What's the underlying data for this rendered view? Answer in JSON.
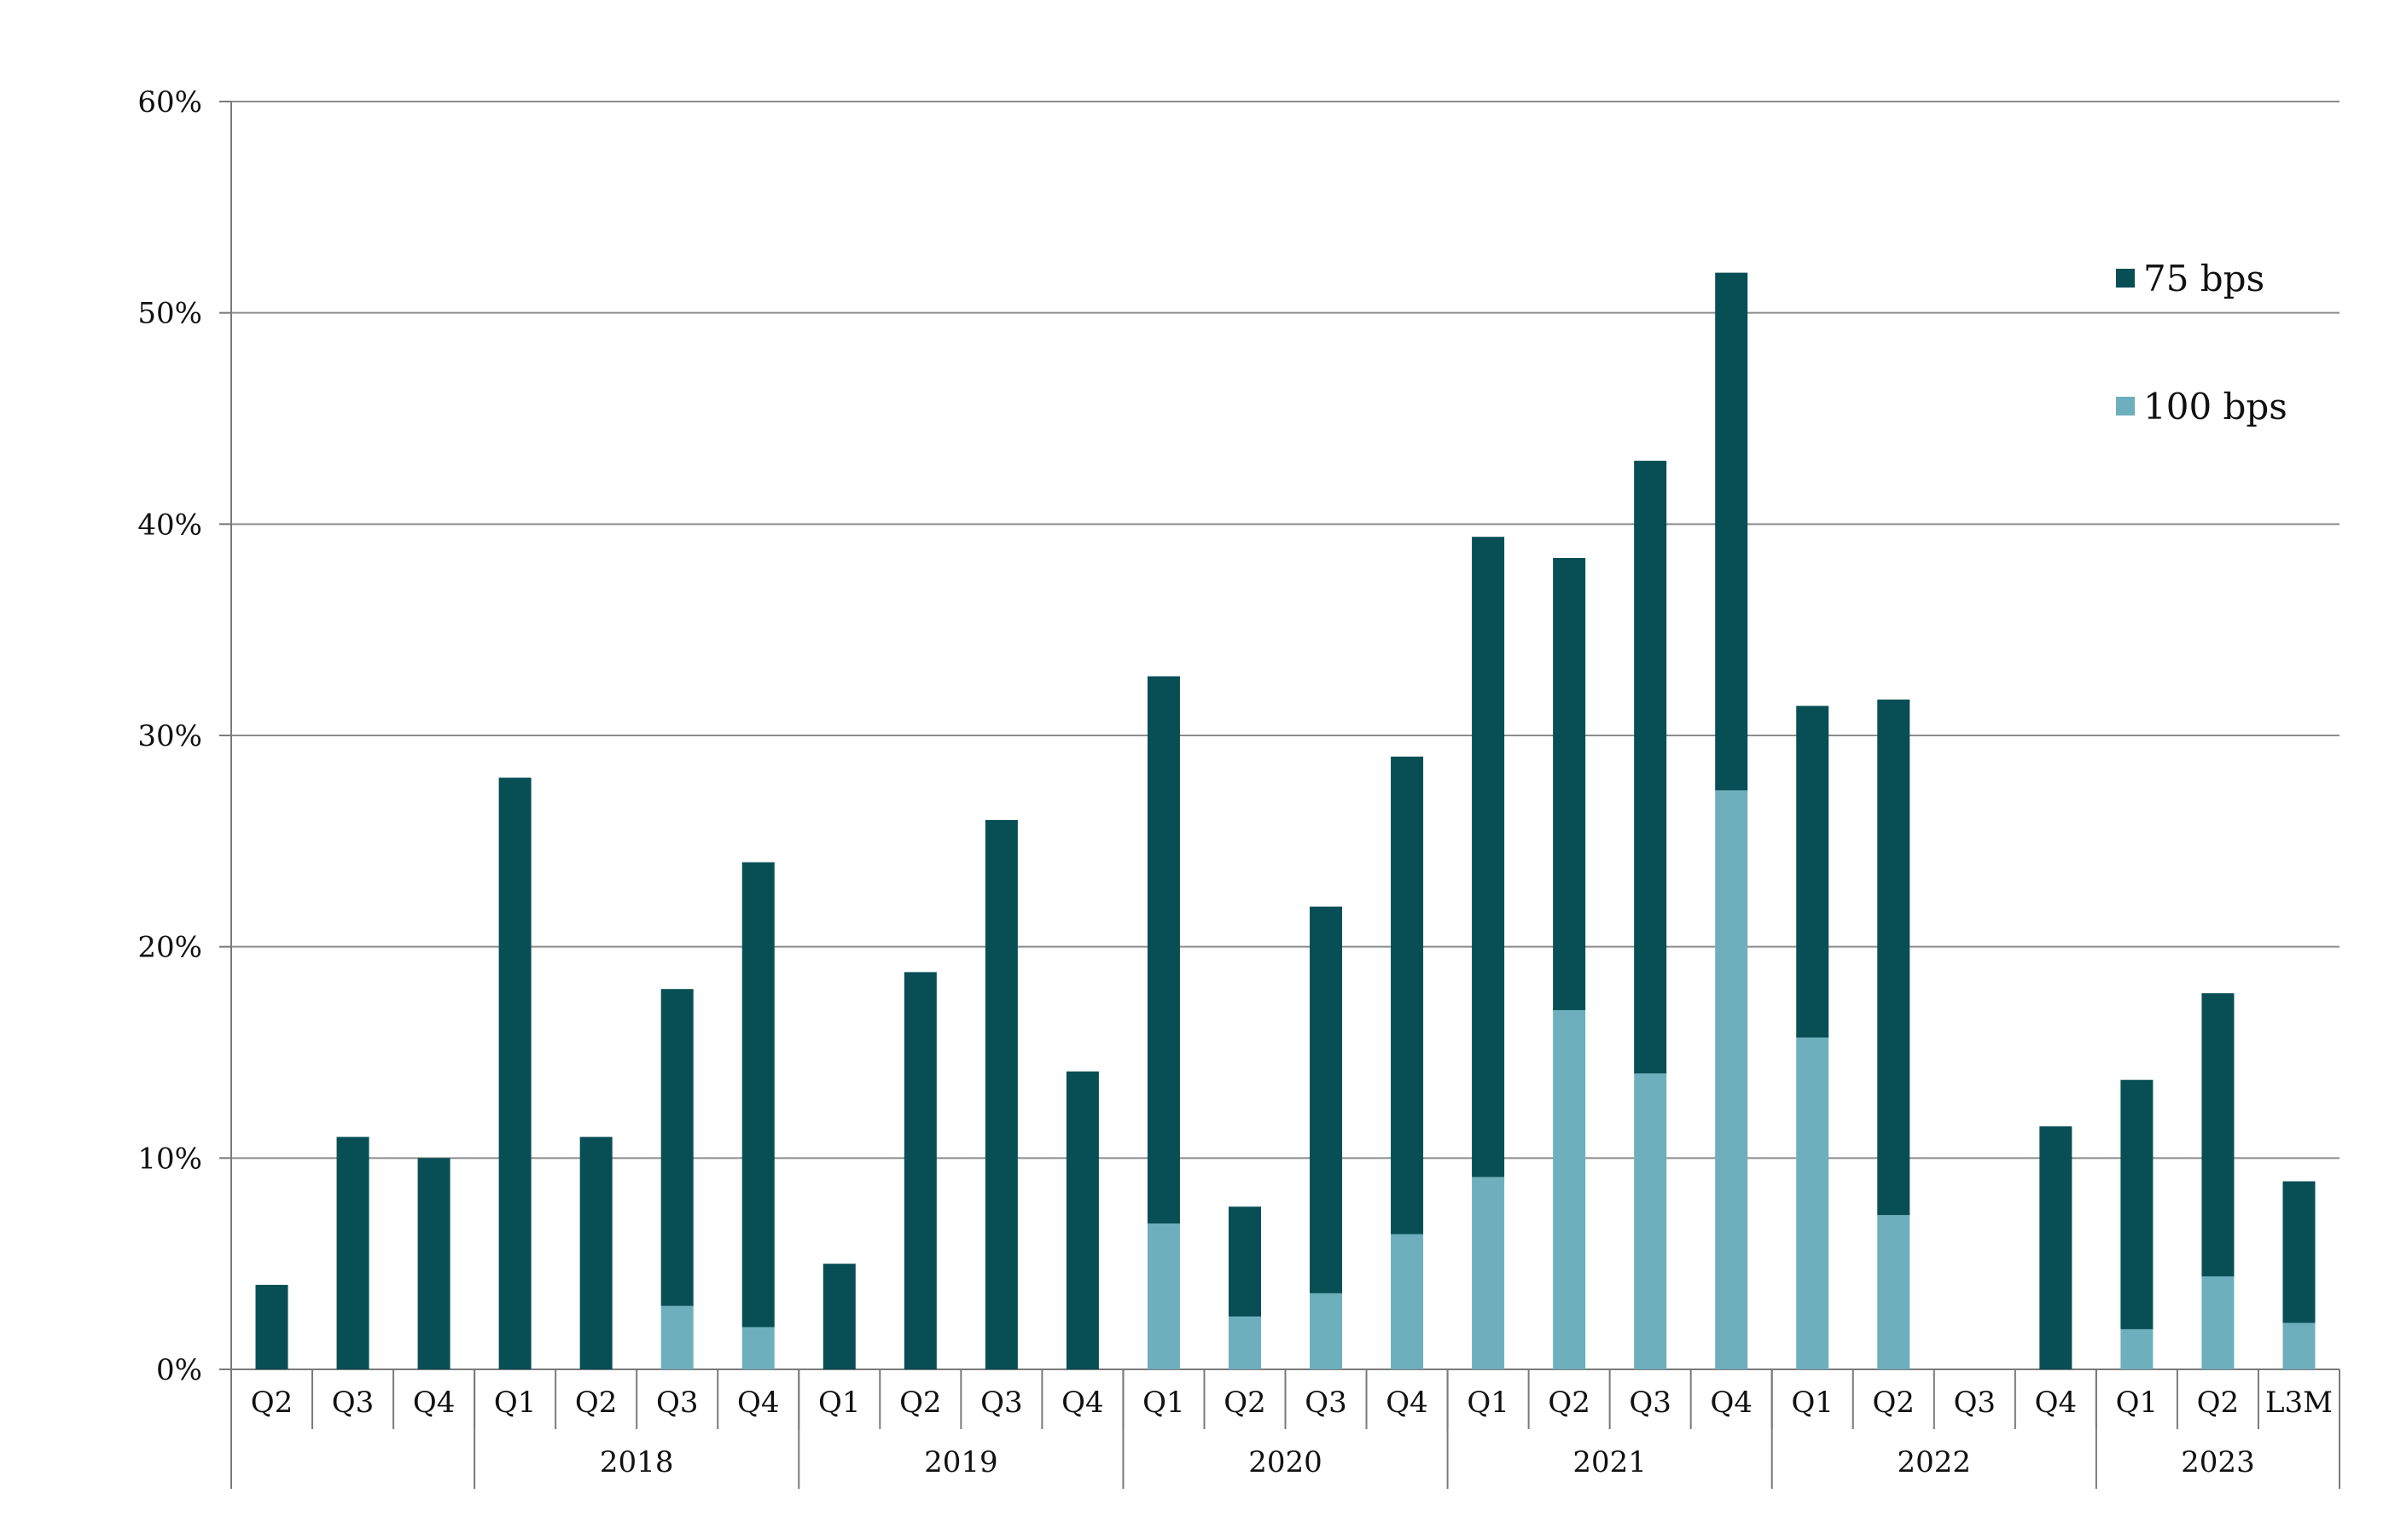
{
  "chart_data": {
    "type": "bar",
    "stacked": true,
    "categories": [
      "Q2",
      "Q3",
      "Q4",
      "Q1",
      "Q2",
      "Q3",
      "Q4",
      "Q1",
      "Q2",
      "Q3",
      "Q4",
      "Q1",
      "Q2",
      "Q3",
      "Q4",
      "Q1",
      "Q2",
      "Q3",
      "Q4",
      "Q1",
      "Q2",
      "Q3",
      "Q4",
      "Q1",
      "Q2",
      "L3M"
    ],
    "year_groups": [
      {
        "label": "",
        "count": 3
      },
      {
        "label": "2018",
        "count": 4
      },
      {
        "label": "2019",
        "count": 4
      },
      {
        "label": "2020",
        "count": 4
      },
      {
        "label": "2021",
        "count": 4
      },
      {
        "label": "2022",
        "count": 4
      },
      {
        "label": "2023",
        "count": 3
      }
    ],
    "series": [
      {
        "name": "100 bps",
        "color": "#6EAFBE",
        "values": [
          0,
          0,
          0,
          0,
          0,
          3,
          2,
          0,
          0,
          0,
          0,
          6.9,
          2.5,
          3.6,
          6.4,
          9.1,
          17,
          14,
          27.4,
          15.7,
          7.3,
          0,
          0,
          1.9,
          4.4,
          2.2
        ]
      },
      {
        "name": "75 bps",
        "color": "#084F55",
        "values": [
          4,
          11,
          10,
          28,
          11,
          15,
          22,
          5,
          18.8,
          26,
          14.1,
          25.9,
          5.2,
          18.3,
          22.6,
          30.3,
          21.4,
          29,
          24.5,
          15.7,
          24.4,
          0,
          11.5,
          11.8,
          13.4,
          6.7
        ]
      }
    ],
    "yticks": [
      "0%",
      "10%",
      "20%",
      "30%",
      "40%",
      "50%",
      "60%"
    ],
    "ylim": [
      0,
      60
    ],
    "grid": true,
    "legend_position": "top-right",
    "xlabel": "",
    "ylabel": "",
    "title": ""
  }
}
